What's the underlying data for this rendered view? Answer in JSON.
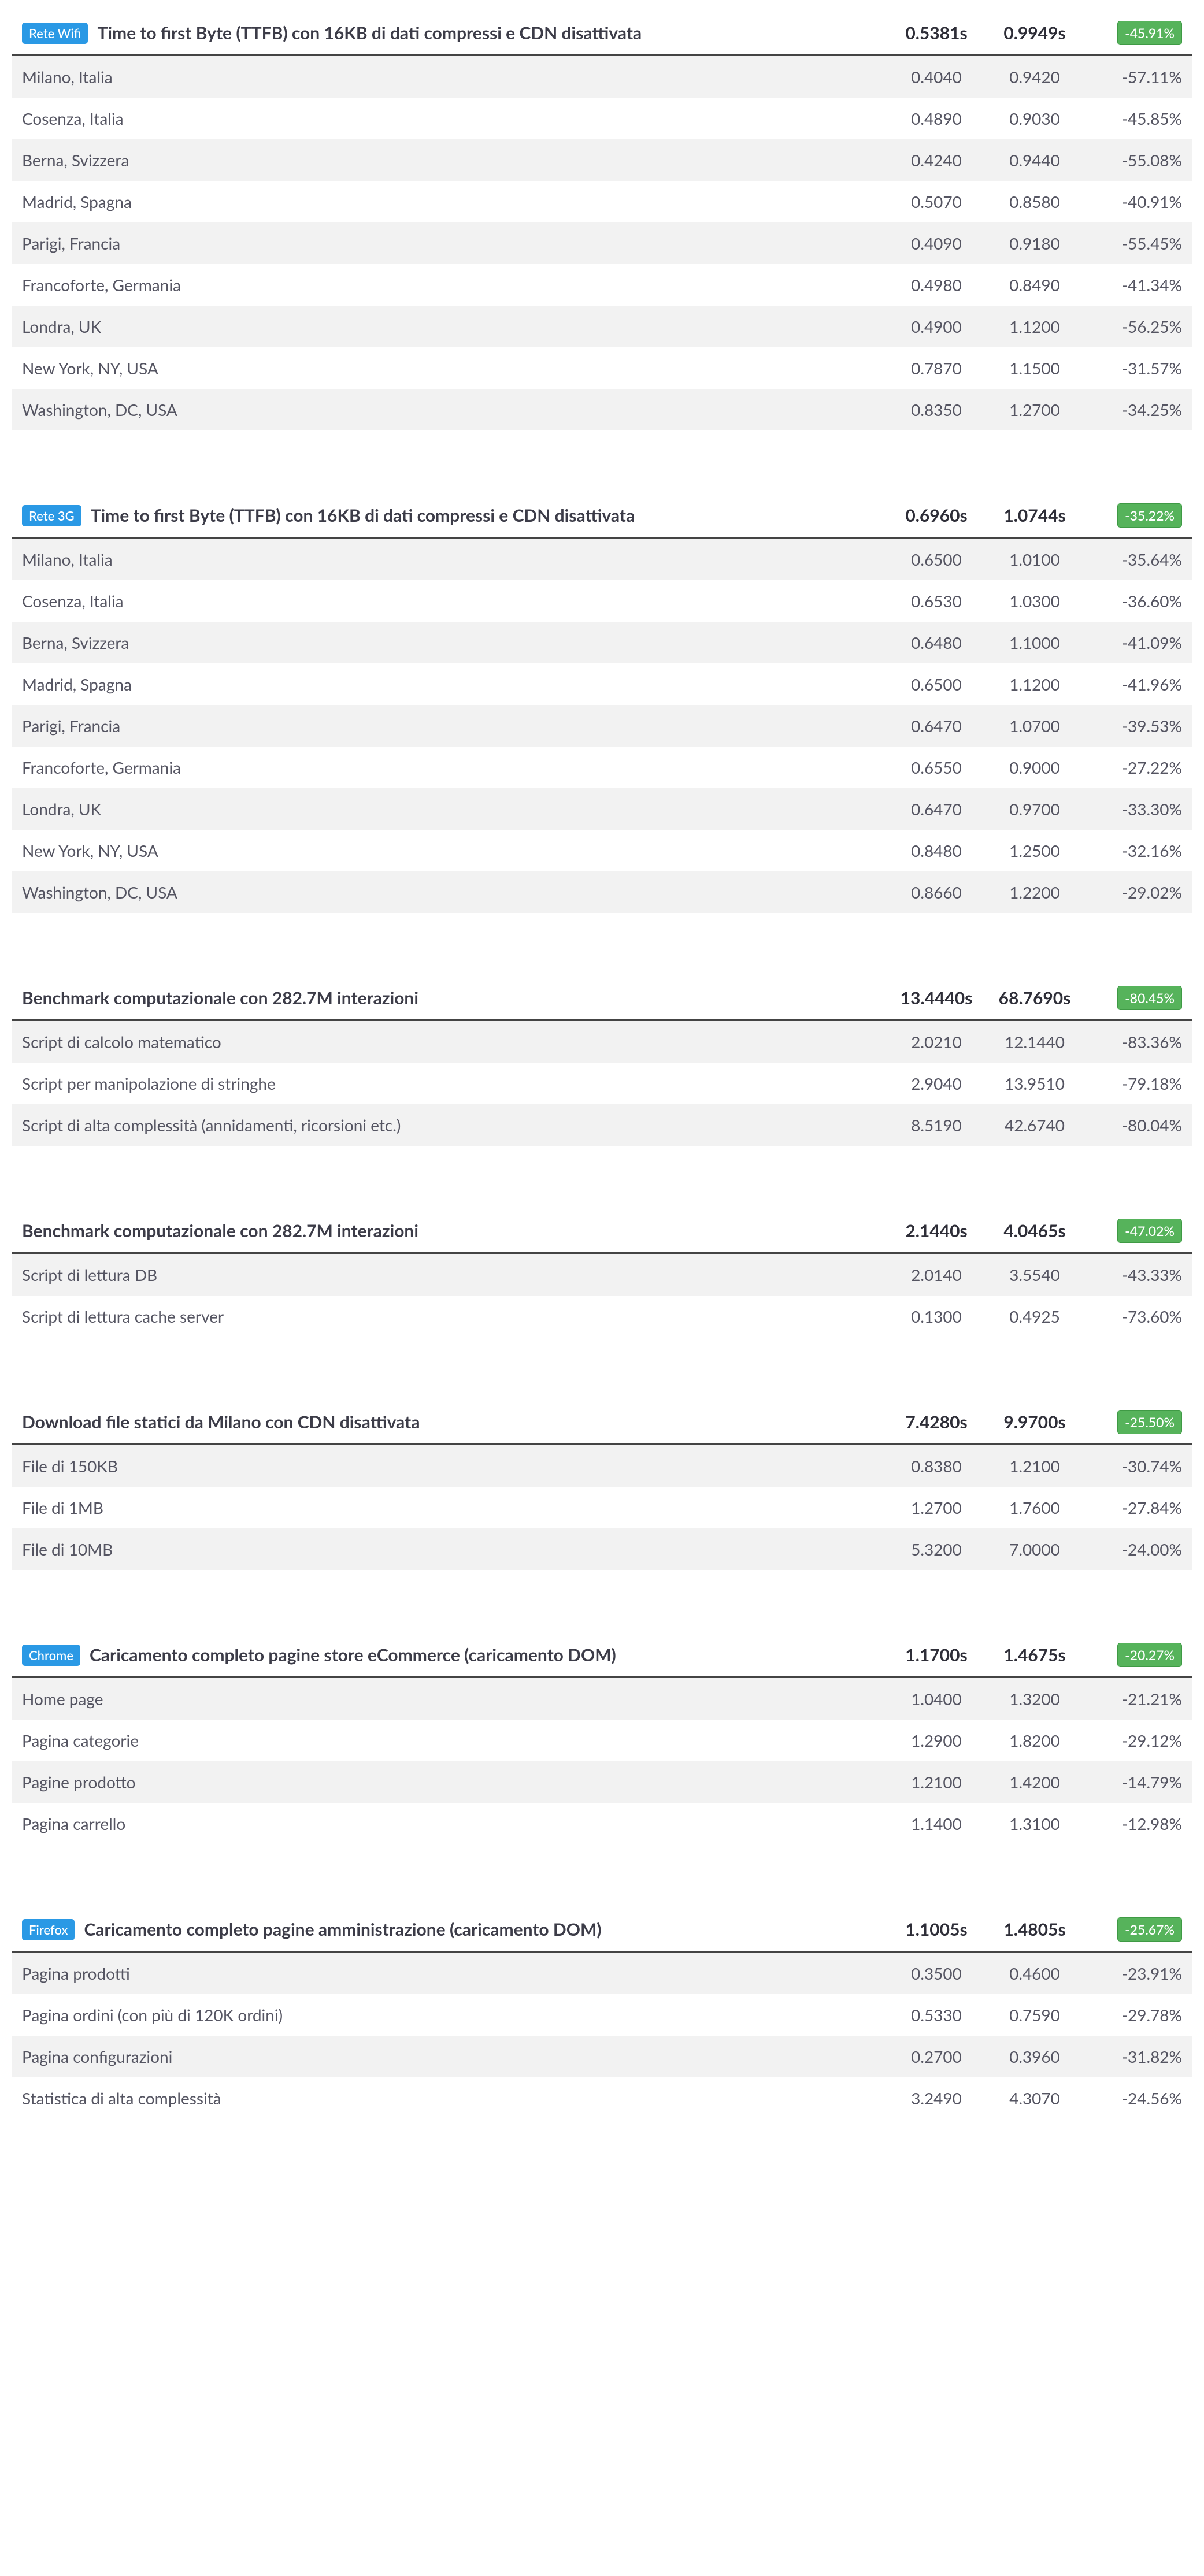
{
  "colors": {
    "badge_blue": "#2a99e5",
    "pct_green_bg": "#56b35b",
    "pct_green_border": "#3f9a45",
    "row_alt": "#f2f2f2",
    "text_dark": "#3c3c48",
    "text_body": "#555562"
  },
  "tables": [
    {
      "badge": "Rete Wifi",
      "badge_color": "#2a99e5",
      "title": "Time to first Byte (TTFB) con 16KB di dati compressi e CDN disattivata",
      "val_a": "0.5381s",
      "val_b": "0.9949s",
      "pct": "-45.91%",
      "rows": [
        {
          "label": "Milano, Italia",
          "a": "0.4040",
          "b": "0.9420",
          "c": "-57.11%"
        },
        {
          "label": "Cosenza, Italia",
          "a": "0.4890",
          "b": "0.9030",
          "c": "-45.85%"
        },
        {
          "label": "Berna, Svizzera",
          "a": "0.4240",
          "b": "0.9440",
          "c": "-55.08%"
        },
        {
          "label": "Madrid, Spagna",
          "a": "0.5070",
          "b": "0.8580",
          "c": "-40.91%"
        },
        {
          "label": "Parigi, Francia",
          "a": "0.4090",
          "b": "0.9180",
          "c": "-55.45%"
        },
        {
          "label": "Francoforte, Germania",
          "a": "0.4980",
          "b": "0.8490",
          "c": "-41.34%"
        },
        {
          "label": "Londra, UK",
          "a": "0.4900",
          "b": "1.1200",
          "c": "-56.25%"
        },
        {
          "label": "New York, NY, USA",
          "a": "0.7870",
          "b": "1.1500",
          "c": "-31.57%"
        },
        {
          "label": "Washington, DC, USA",
          "a": "0.8350",
          "b": "1.2700",
          "c": "-34.25%"
        }
      ]
    },
    {
      "badge": "Rete 3G",
      "badge_color": "#2a99e5",
      "title": "Time to first Byte (TTFB) con 16KB di dati compressi e CDN disattivata",
      "val_a": "0.6960s",
      "val_b": "1.0744s",
      "pct": "-35.22%",
      "rows": [
        {
          "label": "Milano, Italia",
          "a": "0.6500",
          "b": "1.0100",
          "c": "-35.64%"
        },
        {
          "label": "Cosenza, Italia",
          "a": "0.6530",
          "b": "1.0300",
          "c": "-36.60%"
        },
        {
          "label": "Berna, Svizzera",
          "a": "0.6480",
          "b": "1.1000",
          "c": "-41.09%"
        },
        {
          "label": "Madrid, Spagna",
          "a": "0.6500",
          "b": "1.1200",
          "c": "-41.96%"
        },
        {
          "label": "Parigi, Francia",
          "a": "0.6470",
          "b": "1.0700",
          "c": "-39.53%"
        },
        {
          "label": "Francoforte, Germania",
          "a": "0.6550",
          "b": "0.9000",
          "c": "-27.22%"
        },
        {
          "label": "Londra, UK",
          "a": "0.6470",
          "b": "0.9700",
          "c": "-33.30%"
        },
        {
          "label": "New York, NY, USA",
          "a": "0.8480",
          "b": "1.2500",
          "c": "-32.16%"
        },
        {
          "label": "Washington, DC, USA",
          "a": "0.8660",
          "b": "1.2200",
          "c": "-29.02%"
        }
      ]
    },
    {
      "badge": null,
      "title": "Benchmark computazionale con 282.7M interazioni",
      "val_a": "13.4440s",
      "val_b": "68.7690s",
      "pct": "-80.45%",
      "rows": [
        {
          "label": "Script di calcolo matematico",
          "a": "2.0210",
          "b": "12.1440",
          "c": "-83.36%"
        },
        {
          "label": "Script per manipolazione di stringhe",
          "a": "2.9040",
          "b": "13.9510",
          "c": "-79.18%"
        },
        {
          "label": "Script di alta complessità (annidamenti, ricorsioni etc.)",
          "a": "8.5190",
          "b": "42.6740",
          "c": "-80.04%"
        }
      ]
    },
    {
      "badge": null,
      "title": "Benchmark computazionale con 282.7M interazioni",
      "val_a": "2.1440s",
      "val_b": "4.0465s",
      "pct": "-47.02%",
      "rows": [
        {
          "label": "Script di lettura DB",
          "a": "2.0140",
          "b": "3.5540",
          "c": "-43.33%"
        },
        {
          "label": "Script di lettura cache server",
          "a": "0.1300",
          "b": "0.4925",
          "c": "-73.60%"
        }
      ]
    },
    {
      "badge": null,
      "title": "Download file statici da Milano con CDN disattivata",
      "val_a": "7.4280s",
      "val_b": "9.9700s",
      "pct": "-25.50%",
      "rows": [
        {
          "label": "File di 150KB",
          "a": "0.8380",
          "b": "1.2100",
          "c": "-30.74%"
        },
        {
          "label": "File di 1MB",
          "a": "1.2700",
          "b": "1.7600",
          "c": "-27.84%"
        },
        {
          "label": "File di 10MB",
          "a": "5.3200",
          "b": "7.0000",
          "c": "-24.00%"
        }
      ]
    },
    {
      "badge": "Chrome",
      "badge_color": "#2a99e5",
      "title": "Caricamento completo pagine store eCommerce (caricamento DOM)",
      "val_a": "1.1700s",
      "val_b": "1.4675s",
      "pct": "-20.27%",
      "rows": [
        {
          "label": "Home page",
          "a": "1.0400",
          "b": "1.3200",
          "c": "-21.21%"
        },
        {
          "label": "Pagina categorie",
          "a": "1.2900",
          "b": "1.8200",
          "c": "-29.12%"
        },
        {
          "label": "Pagine prodotto",
          "a": "1.2100",
          "b": "1.4200",
          "c": "-14.79%"
        },
        {
          "label": "Pagina carrello",
          "a": "1.1400",
          "b": "1.3100",
          "c": "-12.98%"
        }
      ]
    },
    {
      "badge": "Firefox",
      "badge_color": "#2a99e5",
      "title": "Caricamento completo pagine amministrazione (caricamento DOM)",
      "val_a": "1.1005s",
      "val_b": "1.4805s",
      "pct": "-25.67%",
      "rows": [
        {
          "label": "Pagina prodotti",
          "a": "0.3500",
          "b": "0.4600",
          "c": "-23.91%"
        },
        {
          "label": "Pagina ordini (con più di 120K ordini)",
          "a": "0.5330",
          "b": "0.7590",
          "c": "-29.78%"
        },
        {
          "label": "Pagina configurazioni",
          "a": "0.2700",
          "b": "0.3960",
          "c": "-31.82%"
        },
        {
          "label": "Statistica di alta complessità",
          "a": "3.2490",
          "b": "4.3070",
          "c": "-24.56%"
        }
      ]
    }
  ]
}
